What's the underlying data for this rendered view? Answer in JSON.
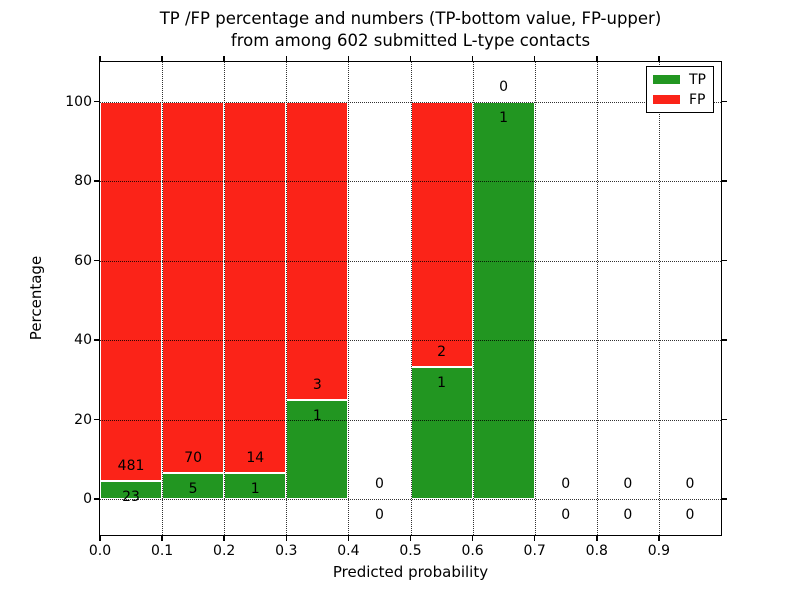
{
  "title": {
    "line1": "TP /FP percentage and numbers (TP-bottom value, FP-upper)",
    "line2": "from among 602 submitted L-type contacts"
  },
  "axes": {
    "xlabel": "Predicted probability",
    "ylabel": "Percentage"
  },
  "legend": {
    "items": [
      {
        "label": "TP",
        "color": "#229621"
      },
      {
        "label": "FP",
        "color": "#FB2318"
      }
    ]
  },
  "colors": {
    "tp_green": "#229621",
    "fp_red": "#FB2318",
    "bar_edge": "#ffffff",
    "grid": "#000000"
  },
  "chart_data": {
    "type": "bar",
    "stacked": true,
    "normalized_to_percent": true,
    "title": "TP /FP percentage and numbers (TP-bottom value, FP-upper) from among 602 submitted L-type contacts",
    "xlabel": "Predicted probability",
    "ylabel": "Percentage",
    "total_contacts": 602,
    "bin_edges": [
      0.0,
      0.1,
      0.2,
      0.3,
      0.4,
      0.5,
      0.6,
      0.7,
      0.8,
      0.9,
      1.0
    ],
    "series": [
      {
        "name": "TP",
        "color": "#229621",
        "counts": [
          23,
          5,
          1,
          1,
          0,
          1,
          1,
          0,
          0,
          0
        ]
      },
      {
        "name": "FP",
        "color": "#FB2318",
        "counts": [
          481,
          70,
          14,
          3,
          0,
          2,
          0,
          0,
          0,
          0
        ]
      }
    ],
    "tp_percent_of_bin": [
      4.56,
      6.67,
      6.67,
      25.0,
      null,
      33.33,
      100.0,
      null,
      null,
      null
    ],
    "xlim": [
      0.0,
      1.0
    ],
    "ylim": [
      -9,
      110
    ],
    "xticks": {
      "values": [
        0.0,
        0.1,
        0.2,
        0.3,
        0.4,
        0.5,
        0.6,
        0.7,
        0.8,
        0.9
      ],
      "labels": [
        "0.0",
        "0.1",
        "0.2",
        "0.3",
        "0.4",
        "0.5",
        "0.6",
        "0.7",
        "0.8",
        "0.9"
      ]
    },
    "yticks": {
      "values": [
        0,
        20,
        40,
        60,
        80,
        100
      ],
      "labels": [
        "0",
        "20",
        "40",
        "60",
        "80",
        "100"
      ]
    },
    "grid": "dotted, both axes, drawn over bars",
    "legend_position": "upper right"
  }
}
